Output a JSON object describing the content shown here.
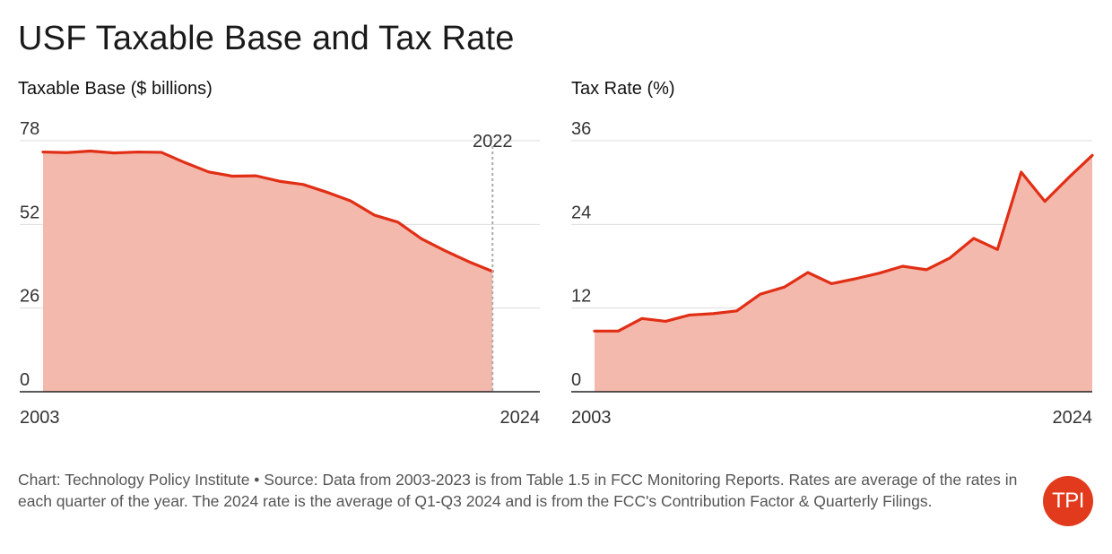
{
  "title": "USF Taxable Base and Tax Rate",
  "accent_color": "#e12f16",
  "fill_color": "#f4b9ad",
  "footer_text": "Chart: Technology Policy Institute • Source: Data from 2003-2023 is from Table 1.5 in FCC Monitoring Reports. Rates are average of the rates in each quarter of the year. The 2024 rate is the average of Q1-Q3 2024 and is from the FCC's Contribution Factor & Quarterly Filings.",
  "logo_text": "TPI",
  "chart_data": [
    {
      "type": "area",
      "title": "Taxable Base ($ billions)",
      "x": [
        2003,
        2004,
        2005,
        2006,
        2007,
        2008,
        2009,
        2010,
        2011,
        2012,
        2013,
        2014,
        2015,
        2016,
        2017,
        2018,
        2019,
        2020,
        2021,
        2022
      ],
      "y": [
        74.5,
        74.3,
        74.8,
        74.2,
        74.5,
        74.4,
        71.2,
        68.3,
        67.0,
        67.1,
        65.4,
        64.4,
        62.0,
        59.3,
        54.9,
        52.7,
        47.5,
        43.8,
        40.4,
        37.4
      ],
      "xlim": [
        2003,
        2024
      ],
      "ylim": [
        0,
        78
      ],
      "x_tick_labels": [
        "2003",
        "2024"
      ],
      "y_tick_labels": [
        "0",
        "26",
        "52",
        "78"
      ],
      "annotation": "2022",
      "grid": true
    },
    {
      "type": "area",
      "title": "Tax Rate (%)",
      "x": [
        2003,
        2004,
        2005,
        2006,
        2007,
        2008,
        2009,
        2010,
        2011,
        2012,
        2013,
        2014,
        2015,
        2016,
        2017,
        2018,
        2019,
        2020,
        2021,
        2022,
        2023,
        2024
      ],
      "y": [
        8.7,
        8.7,
        10.5,
        10.1,
        11.0,
        11.2,
        11.6,
        14.0,
        15.0,
        17.1,
        15.5,
        16.2,
        17.0,
        18.0,
        17.5,
        19.2,
        22.0,
        20.4,
        31.5,
        27.3,
        30.7,
        33.9
      ],
      "xlim": [
        2003,
        2024
      ],
      "ylim": [
        0,
        36
      ],
      "x_tick_labels": [
        "2003",
        "2024"
      ],
      "y_tick_labels": [
        "0",
        "12",
        "24",
        "36"
      ],
      "grid": true
    }
  ]
}
